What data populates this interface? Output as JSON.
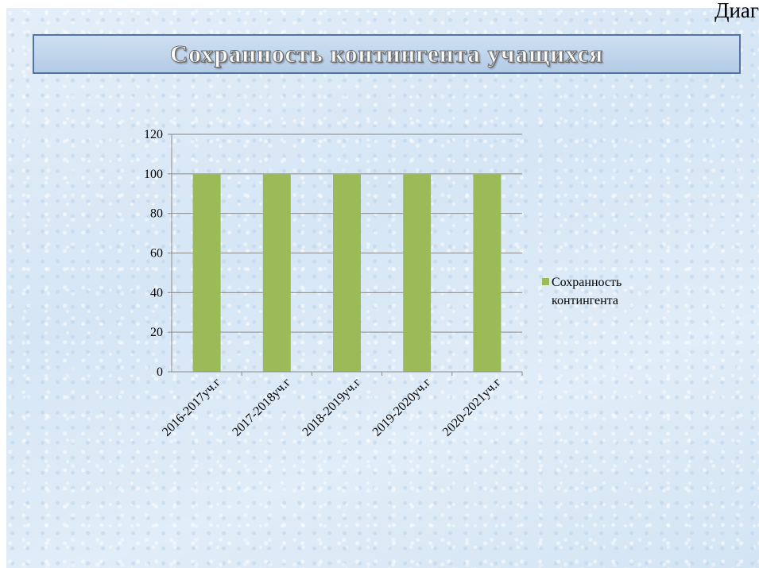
{
  "header": {
    "corner_text": "Диаг"
  },
  "title": "Сохранность контингента учащихся",
  "chart_data": {
    "type": "bar",
    "categories": [
      "2016-2017уч.г",
      "2017-2018уч.г",
      "2018-2019уч.г",
      "2019-2020уч.г",
      "2020-2021уч.г"
    ],
    "series": [
      {
        "name": "Сохранность контингента",
        "values": [
          100,
          100,
          100,
          100,
          100
        ],
        "color": "#9bbb59"
      }
    ],
    "legend_lines": [
      "Сохранность",
      "контингента"
    ],
    "ylim": [
      0,
      120
    ],
    "yticks": [
      0,
      20,
      40,
      60,
      80,
      100,
      120
    ],
    "grid": true,
    "legend_position": "right"
  }
}
